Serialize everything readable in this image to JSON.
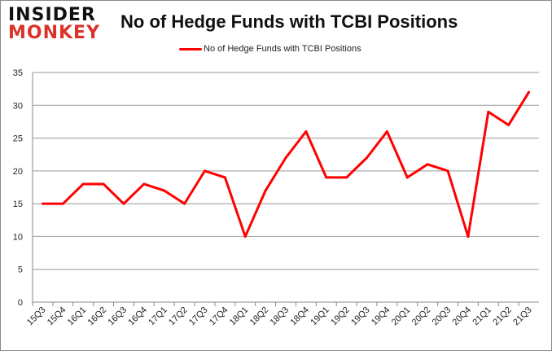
{
  "logo": {
    "line1": "INSIDER",
    "line2": "MONKEY"
  },
  "chart_data": {
    "type": "line",
    "title": "No of Hedge Funds with TCBI Positions",
    "categories": [
      "15Q3",
      "15Q4",
      "16Q1",
      "16Q2",
      "16Q3",
      "16Q4",
      "17Q1",
      "17Q2",
      "17Q3",
      "17Q4",
      "18Q1",
      "18Q2",
      "18Q3",
      "18Q4",
      "19Q1",
      "19Q2",
      "19Q3",
      "19Q4",
      "20Q1",
      "20Q2",
      "20Q3",
      "20Q4",
      "21Q1",
      "21Q2",
      "21Q3"
    ],
    "series": [
      {
        "name": "No of Hedge Funds with TCBI Positions",
        "color": "#ff0000",
        "values": [
          15,
          15,
          18,
          18,
          15,
          18,
          17,
          15,
          20,
          19,
          10,
          17,
          22,
          26,
          19,
          19,
          22,
          26,
          19,
          21,
          20,
          10,
          29,
          27,
          32
        ]
      }
    ],
    "ylim": [
      0,
      35
    ],
    "yticks": [
      0,
      5,
      10,
      15,
      20,
      25,
      30,
      35
    ],
    "grid": true,
    "legend": "top"
  }
}
